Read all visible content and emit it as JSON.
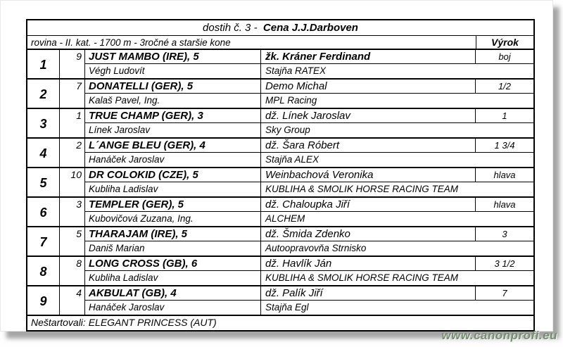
{
  "header": {
    "title_prefix": "dostih č. 3 -  ",
    "title_main": "Cena J.J.Darboven",
    "conditions": "rovina - II. kat. - 1700 m - 3ročné a staršie kone",
    "verdict_header": "Výrok"
  },
  "results": [
    {
      "place": "1",
      "number": "9",
      "horse": "JUST MAMBO (IRE), 5",
      "jockey": "žk. Kráner Ferdinand",
      "winner": true,
      "verdict": "boj",
      "trainer": "Végh Ludovít",
      "stable": "Stajňa RATEX"
    },
    {
      "place": "2",
      "number": "7",
      "horse": "DONATELLI (GER), 5",
      "jockey": "Demo Michal",
      "winner": false,
      "verdict": "1/2",
      "trainer": "Kalaš Pavel, Ing.",
      "stable": "MPL Racing"
    },
    {
      "place": "3",
      "number": "1",
      "horse": "TRUE CHAMP (GER), 3",
      "jockey": "dž. Línek Jaroslav",
      "winner": false,
      "verdict": "1",
      "trainer": "Línek Jaroslav",
      "stable": "Sky Group"
    },
    {
      "place": "4",
      "number": "2",
      "horse": "L´ANGE BLEU (GER), 4",
      "jockey": "dž. Šara Róbert",
      "winner": false,
      "verdict": "1 3/4",
      "trainer": "Hanáček Jaroslav",
      "stable": "Stajňa ALEX"
    },
    {
      "place": "5",
      "number": "10",
      "horse": "DR COLOKID (CZE), 5",
      "jockey": "Weinbachová Veronika",
      "winner": false,
      "verdict": "hlava",
      "trainer": "Kubliha Ladislav",
      "stable": "KUBLIHA & SMOLIK HORSE RACING TEAM"
    },
    {
      "place": "6",
      "number": "3",
      "horse": "TEMPLER (GER), 5",
      "jockey": "dž. Chaloupka Jiří",
      "winner": false,
      "verdict": "hlava",
      "trainer": "Kubovičová Zuzana, Ing.",
      "stable": "ALCHEM"
    },
    {
      "place": "7",
      "number": "5",
      "horse": "THARAJAM (IRE), 5",
      "jockey": "dž. Šmida Zdenko",
      "winner": false,
      "verdict": "3",
      "trainer": "Daniš Marian",
      "stable": "Autoopravovňa Strnisko"
    },
    {
      "place": "8",
      "number": "8",
      "horse": "LONG CROSS (GB), 6",
      "jockey": "dž. Havlík Ján",
      "winner": false,
      "verdict": "3 1/2",
      "trainer": "Kubliha Ladislav",
      "stable": "KUBLIHA & SMOLIK HORSE RACING TEAM"
    },
    {
      "place": "9",
      "number": "4",
      "horse": "AKBULAT (GB), 4",
      "jockey": "dž. Palík Jiří",
      "winner": false,
      "verdict": "7",
      "trainer": "Hanáček Jaroslav",
      "stable": "Stajňa Egl"
    }
  ],
  "footer": {
    "nonstarters": "Neštartovali: ELEGANT PRINCESS (AUT)"
  },
  "watermark": "www.canonprofi.eu",
  "colors": {
    "border": "#000000",
    "watermark": "#75906f",
    "page": "#ffffff"
  }
}
